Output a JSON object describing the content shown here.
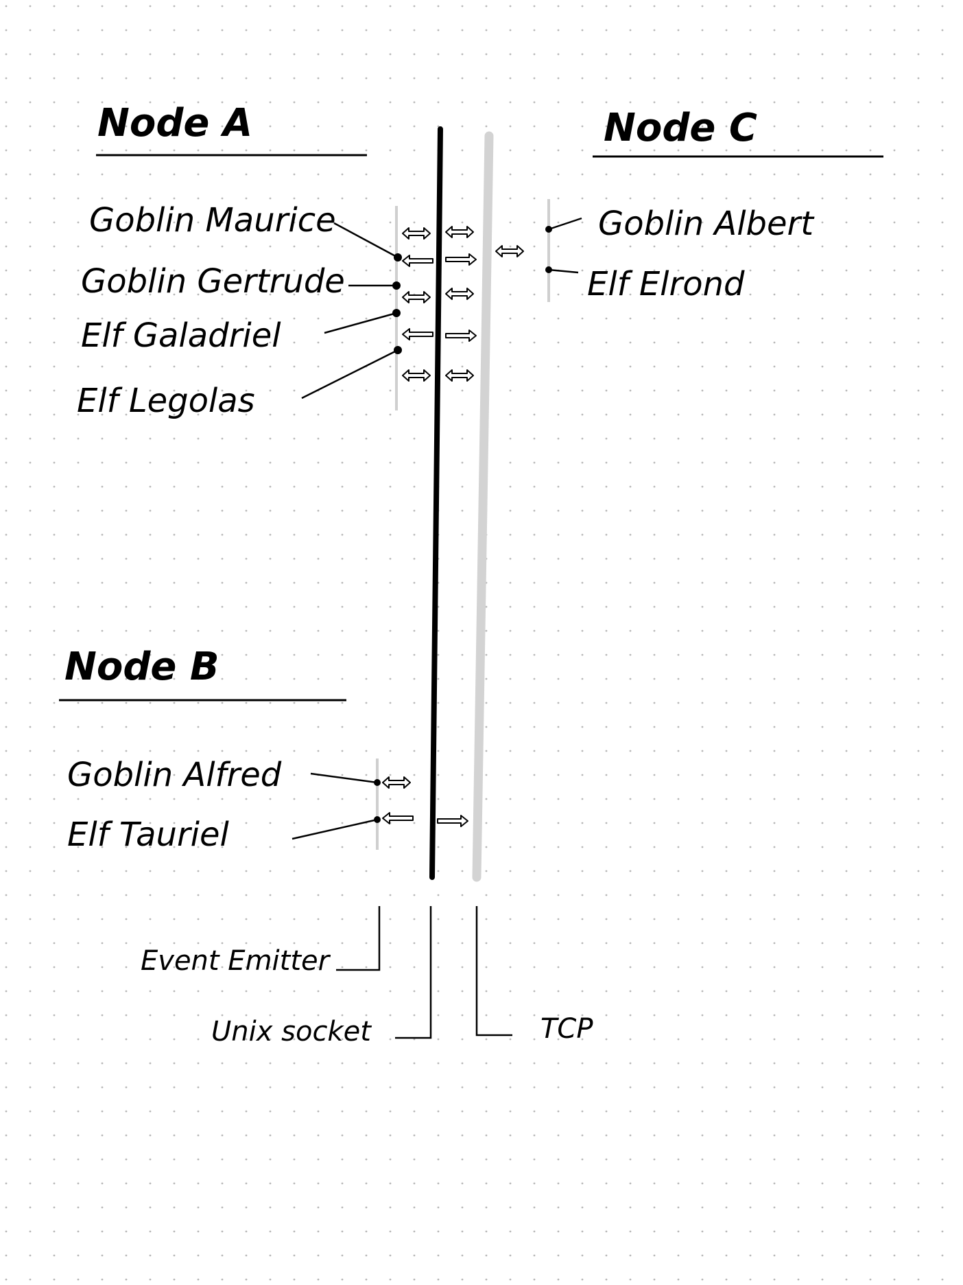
{
  "nodes": {
    "a": {
      "title": "Node A",
      "actors": [
        "Goblin Maurice",
        "Goblin Gertrude",
        "Elf Galadriel",
        "Elf Legolas"
      ]
    },
    "b": {
      "title": "Node B",
      "actors": [
        "Goblin Alfred",
        "Elf Tauriel"
      ]
    },
    "c": {
      "title": "Node C",
      "actors": [
        "Goblin Albert",
        "Elf Elrond"
      ]
    }
  },
  "legend": {
    "event_emitter": "Event Emitter",
    "unix_socket": "Unix socket",
    "tcp": "TCP"
  },
  "colors": {
    "ink": "#000000",
    "event_emitter_line": "#cfcfcf",
    "unix_socket_line": "#000000",
    "tcp_line": "#d3d3d3",
    "dot_grid": "#b8b8b8"
  }
}
